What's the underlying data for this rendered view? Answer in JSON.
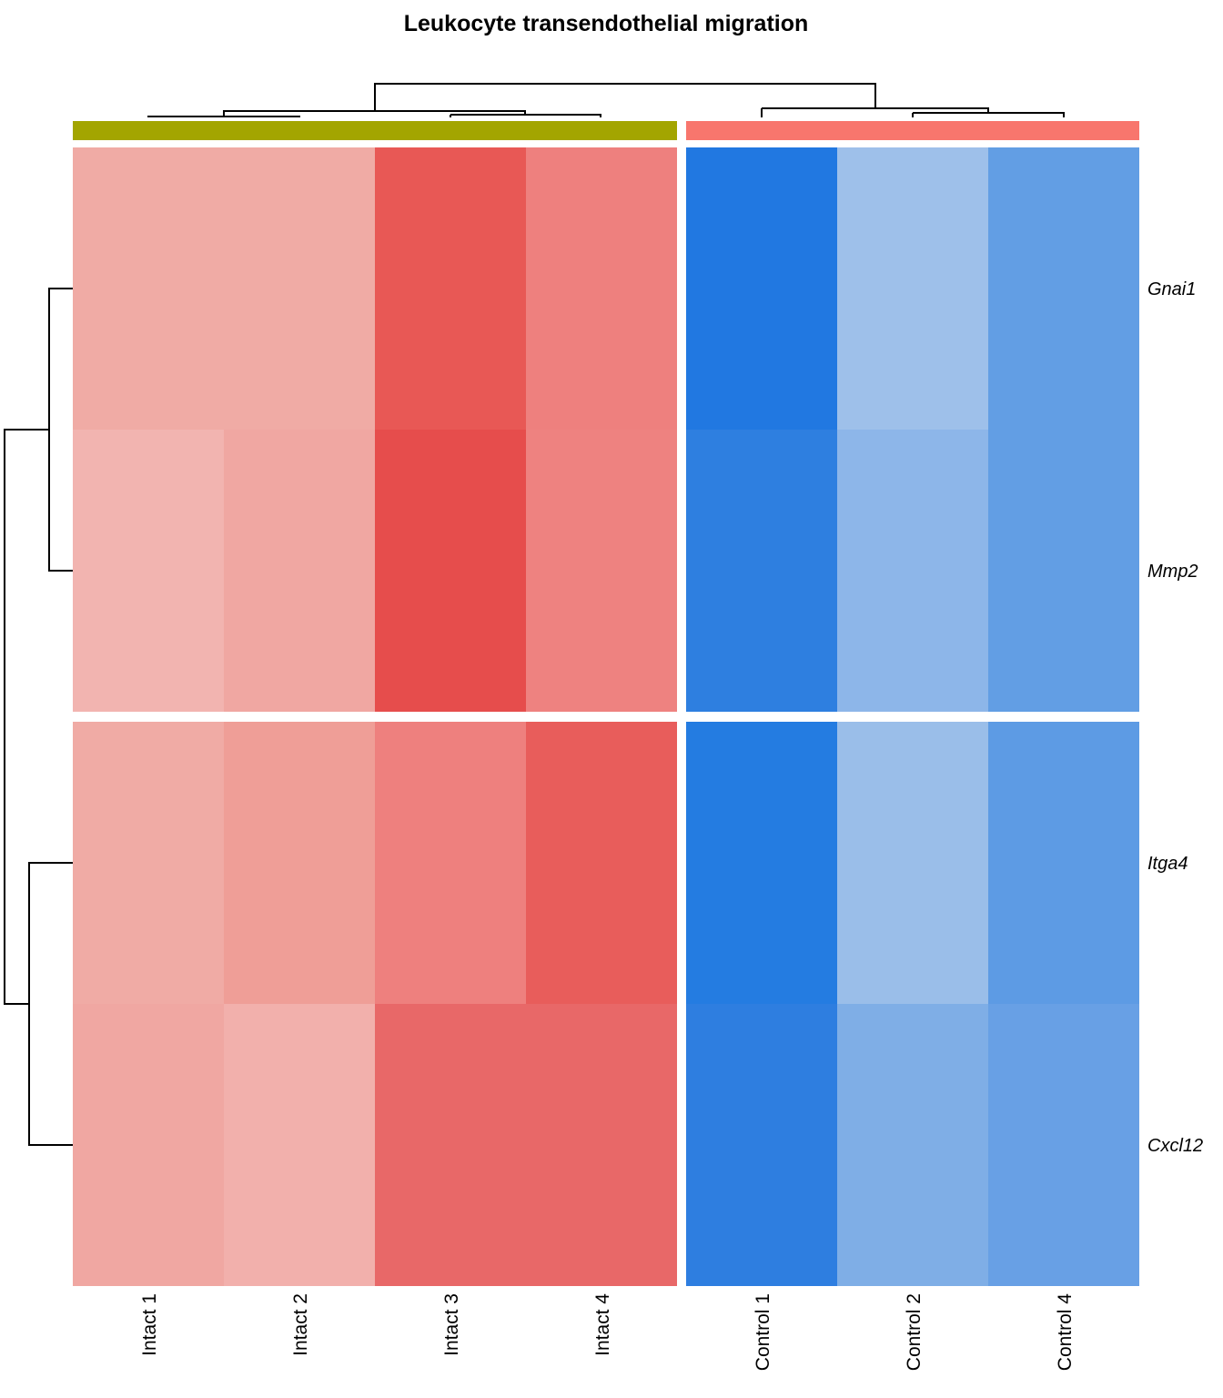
{
  "chart_data": {
    "type": "heatmap",
    "title": "Leukocyte transendothelial migration",
    "rows": [
      "Gnai1",
      "Mmp2",
      "Itga4",
      "Cxcl12"
    ],
    "row_groups": [
      [
        "Gnai1",
        "Mmp2"
      ],
      [
        "Itga4",
        "Cxcl12"
      ]
    ],
    "columns": [
      "Intact 1",
      "Intact 2",
      "Intact 3",
      "Intact 4",
      "Control 1",
      "Control 2",
      "Control 4"
    ],
    "column_groups": [
      {
        "members": [
          "Intact 1",
          "Intact 2",
          "Intact 3",
          "Intact 4"
        ],
        "annotation_color": "#A3A500"
      },
      {
        "members": [
          "Control 1",
          "Control 2",
          "Control 4"
        ],
        "annotation_color": "#F8766D"
      }
    ],
    "values": [
      [
        "#F0ABA5",
        "#F0ABA5",
        "#E85855",
        "#EE807E",
        "#2178E1",
        "#9EC0EA",
        "#629EE4"
      ],
      [
        "#F2B4B0",
        "#F0A7A2",
        "#E64D4C",
        "#EE8280",
        "#2E7FE0",
        "#8DB6E9",
        "#629EE4"
      ],
      [
        "#F0ABA5",
        "#EF9E97",
        "#EE807E",
        "#E85D5B",
        "#247CE1",
        "#9ABEE9",
        "#5D9BE4"
      ],
      [
        "#F0A7A2",
        "#F2B0AC",
        "#E86868",
        "#E86868",
        "#2E7EE0",
        "#7FAEE6",
        "#68A0E5"
      ]
    ],
    "color_scale": {
      "high": "#E64D4C",
      "low": "#2178E1"
    },
    "legend": "none"
  }
}
